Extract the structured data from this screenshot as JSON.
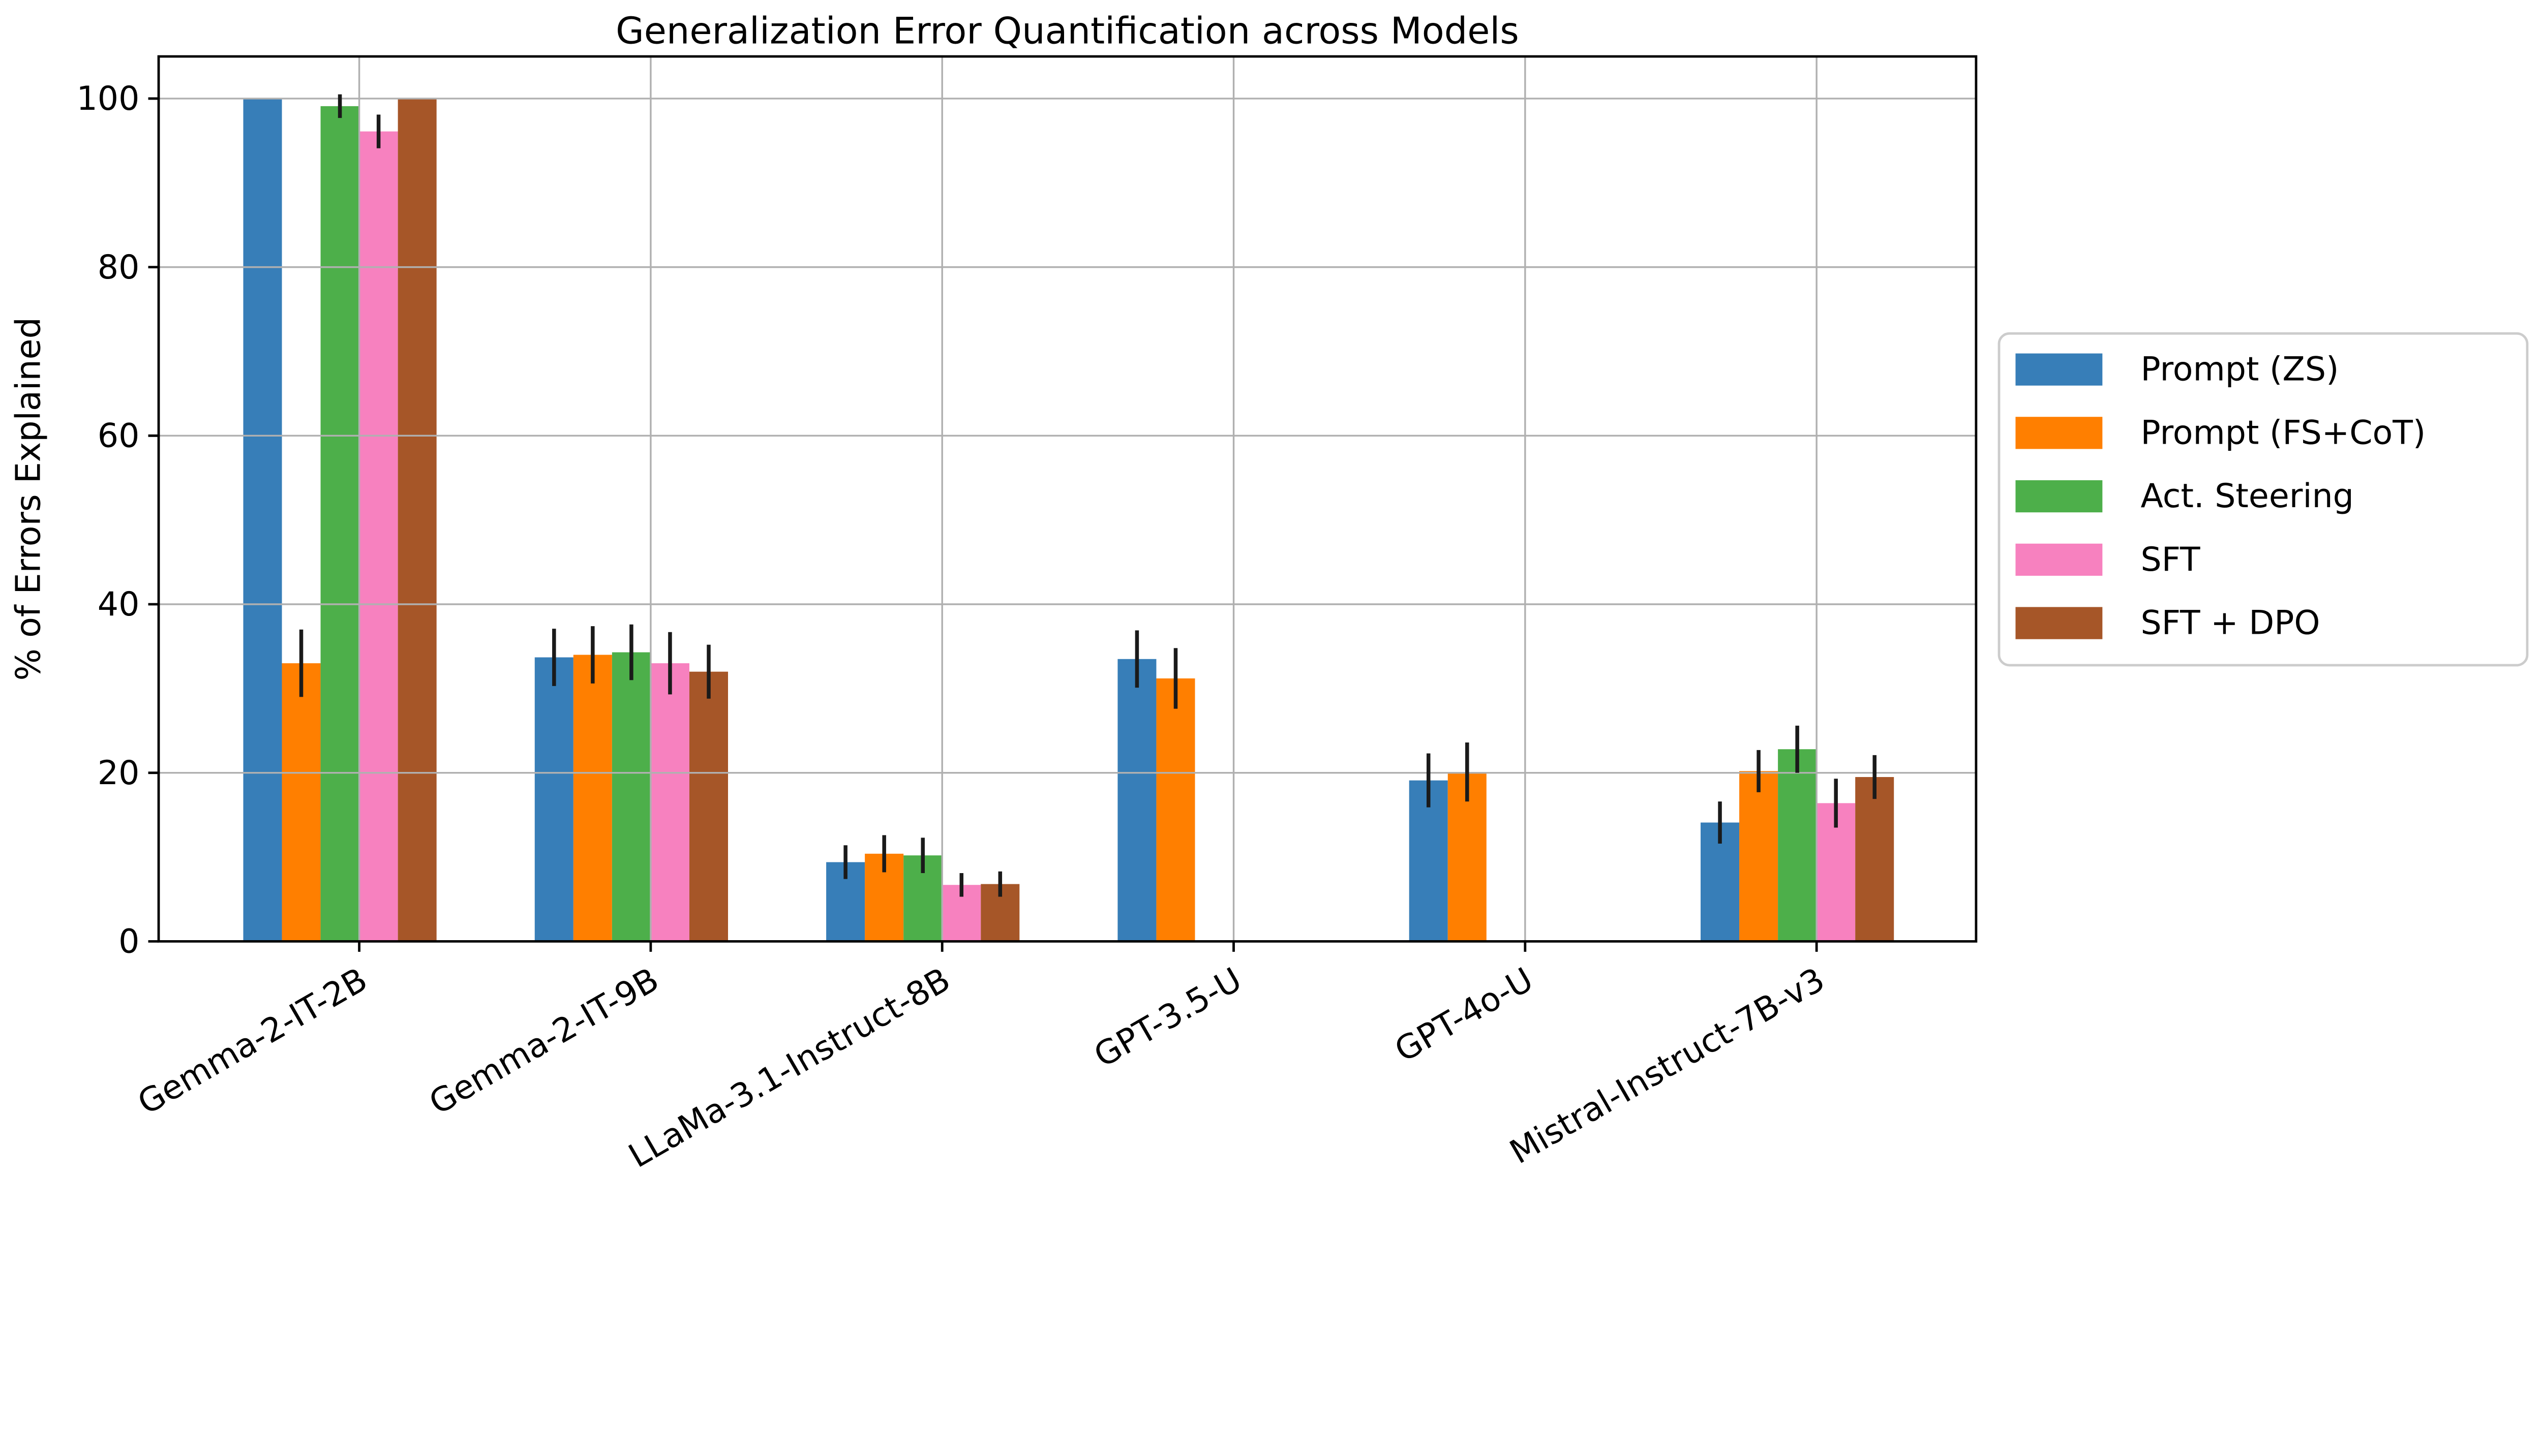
{
  "figure": {
    "background": "#ffffff"
  },
  "chart_data": {
    "type": "bar",
    "title": "Generalization Error Quantification across Models",
    "xlabel": "",
    "ylabel": "% of Errors Explained",
    "ylim": [
      0,
      105
    ],
    "yticks": [
      0,
      20,
      40,
      60,
      80,
      100
    ],
    "grid": true,
    "grid_color": "#b0b0b0",
    "spine_color": "#000000",
    "error_bar_color": "#1a1a1a",
    "legend_position": "outside-right",
    "categories": [
      "Gemma-2-IT-2B",
      "Gemma-2-IT-9B",
      "LLaMa-3.1-Instruct-8B",
      "GPT-3.5-U",
      "GPT-4o-U",
      "Mistral-Instruct-7B-v3"
    ],
    "series": [
      {
        "name": "Prompt (ZS)",
        "color": "#377eb8",
        "values": [
          100,
          33.7,
          9.4,
          33.5,
          19.1,
          14.1
        ],
        "errors": [
          0,
          3.4,
          2.0,
          3.4,
          3.2,
          2.5
        ]
      },
      {
        "name": "Prompt (FS+CoT)",
        "color": "#ff7f00",
        "values": [
          33.0,
          34.0,
          10.4,
          31.2,
          20.1,
          20.2
        ],
        "errors": [
          4.0,
          3.4,
          2.2,
          3.6,
          3.5,
          2.5
        ]
      },
      {
        "name": "Act. Steering",
        "color": "#4daf4a",
        "values": [
          99.1,
          34.3,
          10.2,
          null,
          null,
          22.8
        ],
        "errors": [
          1.4,
          3.3,
          2.1,
          null,
          null,
          2.8
        ]
      },
      {
        "name": "SFT",
        "color": "#f781bf",
        "values": [
          96.1,
          33.0,
          6.7,
          null,
          null,
          16.4
        ],
        "errors": [
          2.0,
          3.7,
          1.4,
          null,
          null,
          2.9
        ]
      },
      {
        "name": "SFT + DPO",
        "color": "#a65628",
        "values": [
          100,
          32.0,
          6.8,
          null,
          null,
          19.5
        ],
        "errors": [
          0,
          3.2,
          1.5,
          null,
          null,
          2.6
        ]
      }
    ]
  },
  "legend": {
    "entries": [
      {
        "label": "Prompt (ZS)",
        "color": "#377eb8"
      },
      {
        "label": "Prompt (FS+CoT)",
        "color": "#ff7f00"
      },
      {
        "label": "Act. Steering",
        "color": "#4daf4a"
      },
      {
        "label": "SFT",
        "color": "#f781bf"
      },
      {
        "label": "SFT + DPO",
        "color": "#a65628"
      }
    ]
  }
}
